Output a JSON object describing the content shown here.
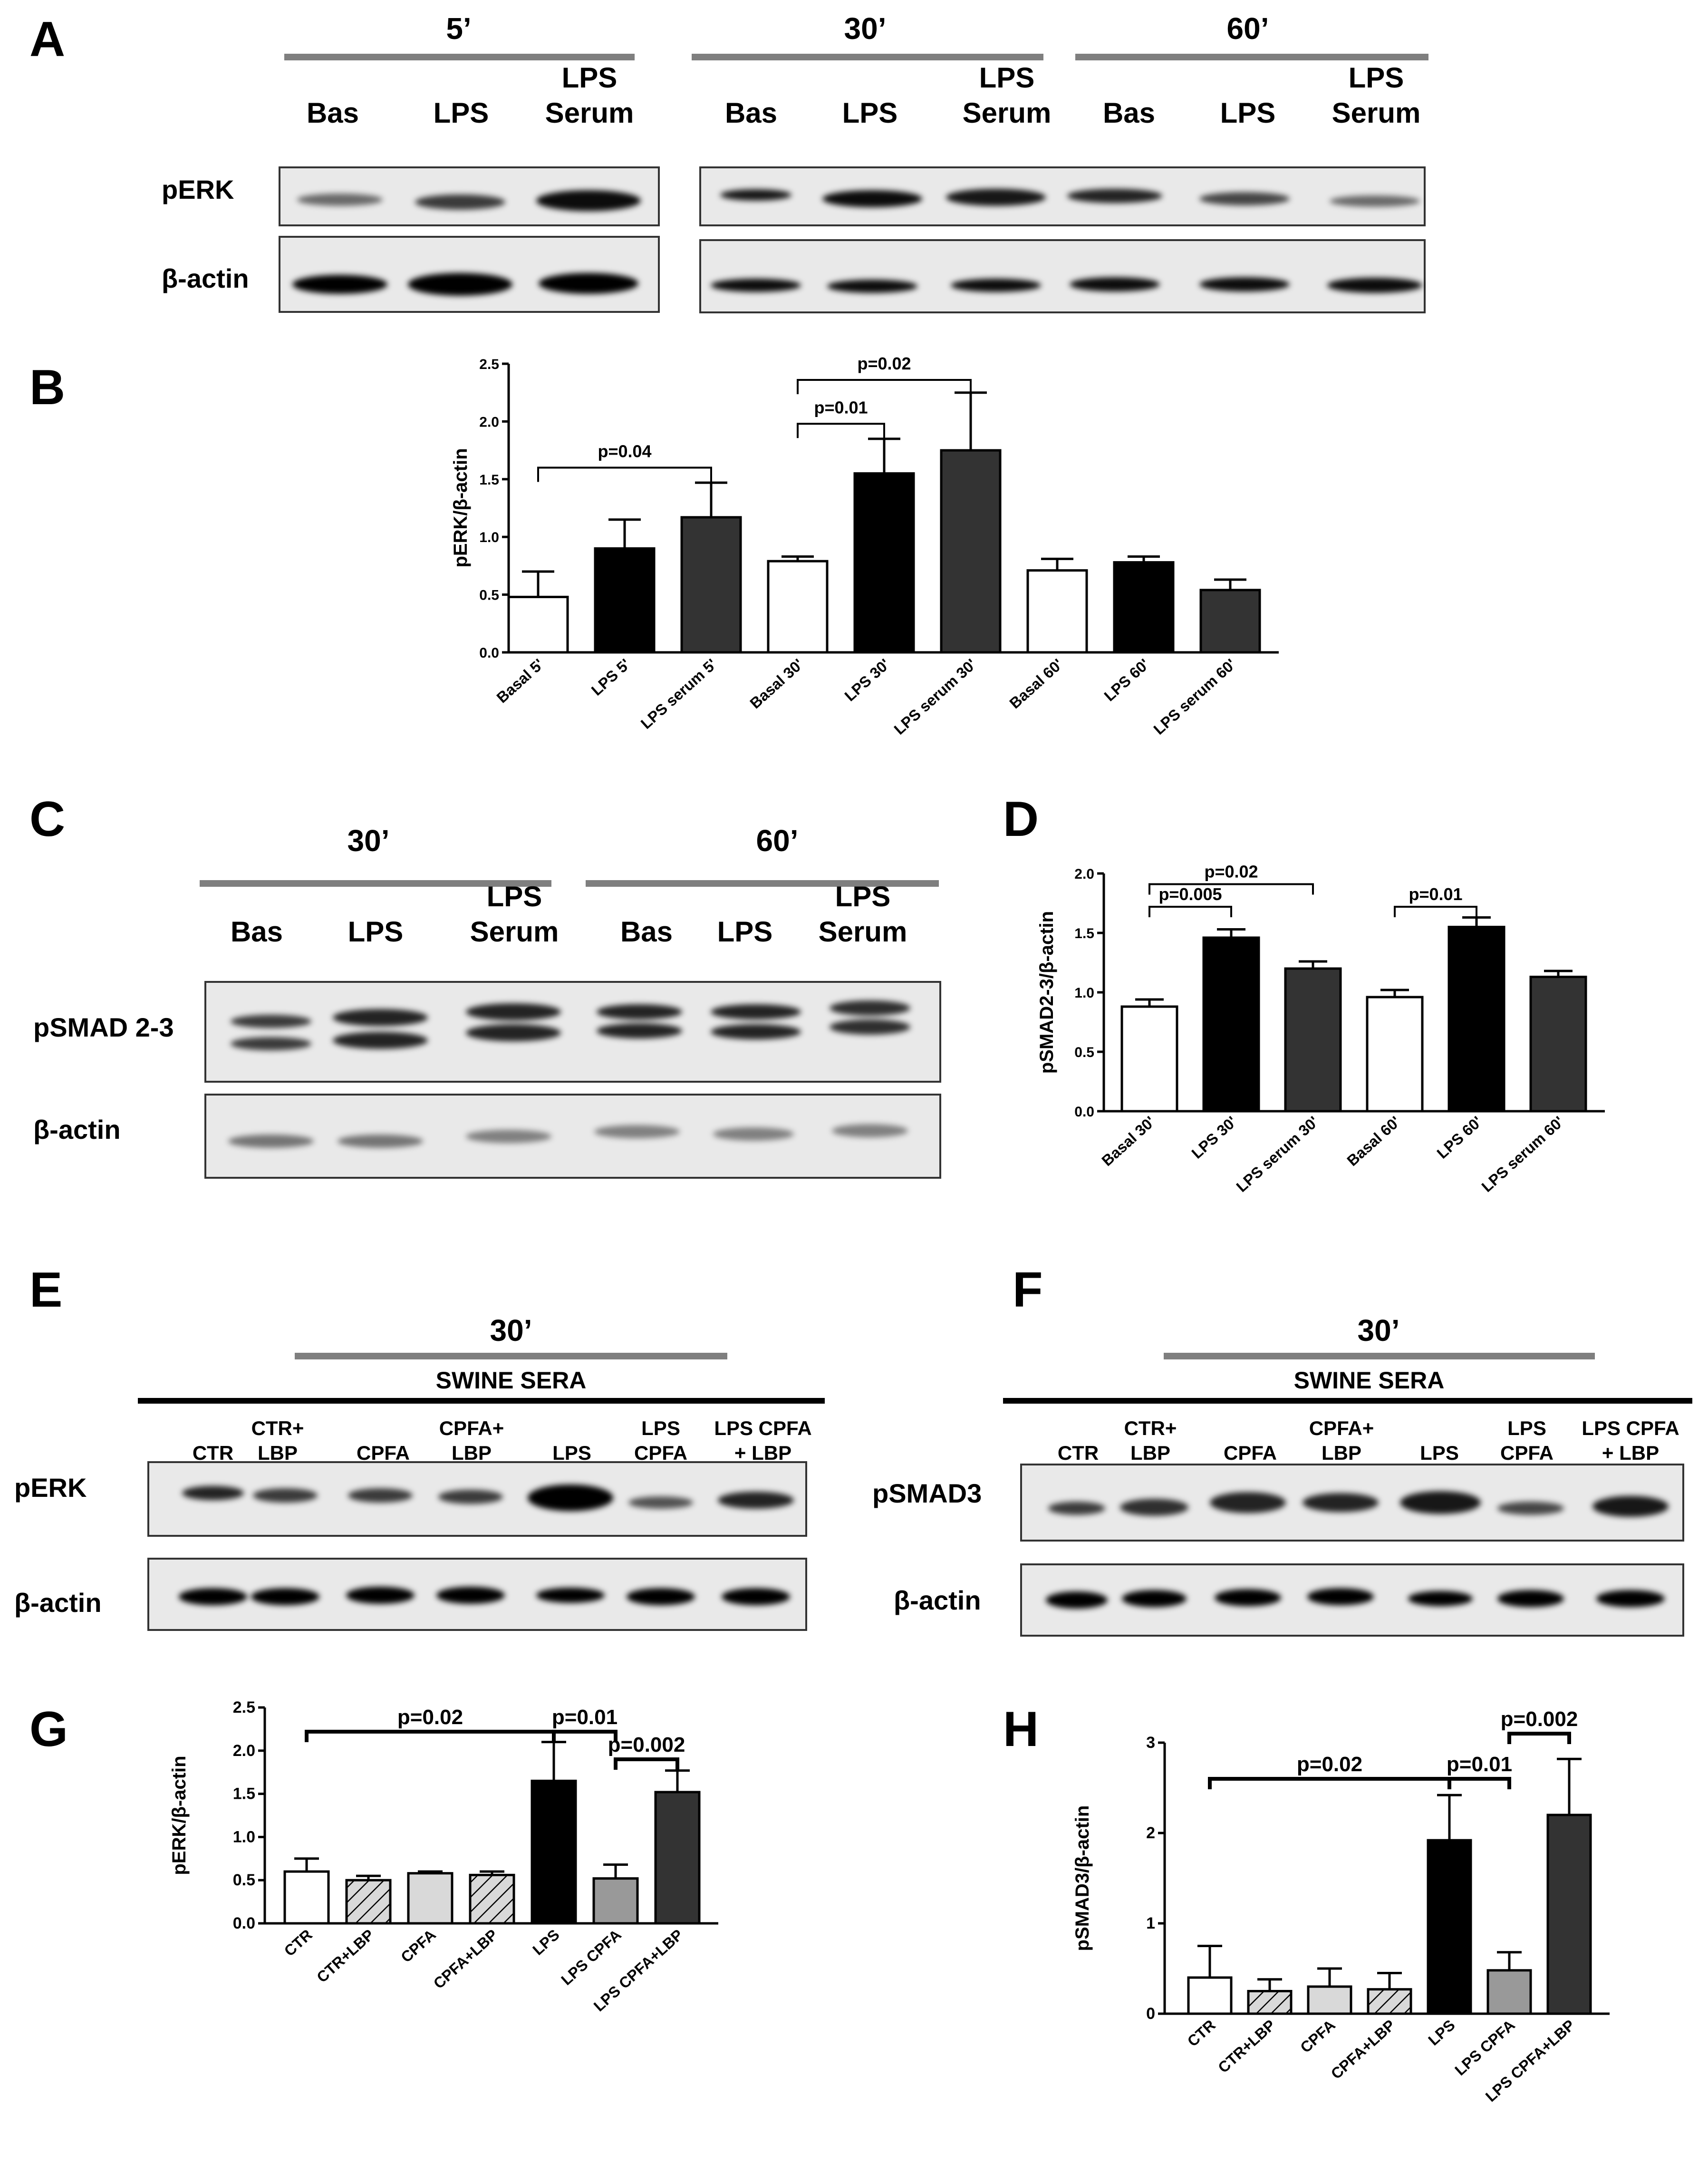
{
  "panels": {
    "A": "A",
    "B": "B",
    "C": "C",
    "D": "D",
    "E": "E",
    "F": "F",
    "G": "G",
    "H": "H"
  },
  "blot_A": {
    "times": [
      "5’",
      "30’",
      "60’"
    ],
    "lanes": [
      "Bas",
      "LPS",
      "LPS\nSerum",
      "Bas",
      "LPS",
      "LPS\nSerum",
      "Bas",
      "LPS",
      "LPS\nSerum"
    ],
    "rows": [
      "pERK",
      "β-actin"
    ]
  },
  "blot_C": {
    "times": [
      "30’",
      "60’"
    ],
    "lanes": [
      "Bas",
      "LPS",
      "LPS\nSerum",
      "Bas",
      "LPS",
      "LPS\nSerum"
    ],
    "rows": [
      "pSMAD 2-3",
      "β-actin"
    ]
  },
  "blot_E": {
    "time": "30’",
    "sera": "SWINE SERA",
    "lanes": [
      "CTR",
      "CTR+\nLBP",
      "CPFA",
      "CPFA+\nLBP",
      "LPS",
      "LPS\nCPFA",
      "LPS CPFA\n+ LBP"
    ],
    "rows": [
      "pERK",
      "β-actin"
    ]
  },
  "blot_F": {
    "time": "30’",
    "sera": "SWINE SERA",
    "lanes": [
      "CTR",
      "CTR+\nLBP",
      "CPFA",
      "CPFA+\nLBP",
      "LPS",
      "LPS\nCPFA",
      "LPS CPFA\n+ LBP"
    ],
    "rows": [
      "pSMAD3",
      "β-actin"
    ]
  },
  "colors": {
    "white": "#ffffff",
    "black": "#000000",
    "dark": "#333333",
    "light": "#d9d9d9",
    "midgray": "#999999",
    "hatch": "#d9d9d9"
  },
  "chart_data": [
    {
      "id": "B",
      "type": "bar",
      "ylabel": "pERK/β-actin",
      "ylim": [
        0,
        2.5
      ],
      "yticks": [
        "0.0",
        "0.5",
        "1.0",
        "1.5",
        "2.0",
        "2.5"
      ],
      "categories": [
        "Basal 5'",
        "LPS 5'",
        "LPS serum 5'",
        "Basal 30'",
        "LPS 30'",
        "LPS serum 30'",
        "Basal 60'",
        "LPS 60'",
        "LPS serum 60'"
      ],
      "values": [
        0.48,
        0.9,
        1.17,
        0.79,
        1.55,
        1.75,
        0.71,
        0.78,
        0.54
      ],
      "errors": [
        0.22,
        0.25,
        0.3,
        0.04,
        0.3,
        0.5,
        0.1,
        0.05,
        0.09
      ],
      "fills": [
        "white",
        "black",
        "dark",
        "white",
        "black",
        "dark",
        "white",
        "black",
        "dark"
      ],
      "annotations": [
        {
          "from": 0,
          "to": 2,
          "y": 1.6,
          "text": "p=0.04"
        },
        {
          "from": 3,
          "to": 4,
          "y": 1.98,
          "text": "p=0.01"
        },
        {
          "from": 3,
          "to": 5,
          "y": 2.36,
          "text": "p=0.02"
        }
      ]
    },
    {
      "id": "D",
      "type": "bar",
      "ylabel": "pSMAD2-3/β-actin",
      "ylim": [
        0,
        2.0
      ],
      "yticks": [
        "0.0",
        "0.5",
        "1.0",
        "1.5",
        "2.0"
      ],
      "categories": [
        "Basal 30'",
        "LPS 30'",
        "LPS serum 30'",
        "Basal 60'",
        "LPS 60'",
        "LPS serum 60'"
      ],
      "values": [
        0.88,
        1.46,
        1.2,
        0.96,
        1.55,
        1.13
      ],
      "errors": [
        0.06,
        0.07,
        0.06,
        0.06,
        0.08,
        0.05
      ],
      "fills": [
        "white",
        "black",
        "dark",
        "white",
        "black",
        "dark"
      ],
      "annotations": [
        {
          "from": 0,
          "to": 1,
          "y": 1.72,
          "text": "p=0.005"
        },
        {
          "from": 0,
          "to": 2,
          "y": 1.91,
          "text": "p=0.02"
        },
        {
          "from": 3,
          "to": 4,
          "y": 1.72,
          "text": "p=0.01"
        }
      ]
    },
    {
      "id": "G",
      "type": "bar",
      "ylabel": "pERK/β-actin",
      "ylim": [
        0,
        2.5
      ],
      "yticks": [
        "0.0",
        "0.5",
        "1.0",
        "1.5",
        "2.0",
        "2.5"
      ],
      "categories": [
        "CTR",
        "CTR+LBP",
        "CPFA",
        "CPFA+LBP",
        "LPS",
        "LPS CPFA",
        "LPS CPFA+LBP"
      ],
      "values": [
        0.6,
        0.5,
        0.58,
        0.56,
        1.65,
        0.52,
        1.52
      ],
      "errors": [
        0.15,
        0.05,
        0.02,
        0.04,
        0.45,
        0.16,
        0.25
      ],
      "fills": [
        "white",
        "hatch",
        "light",
        "hatch",
        "black",
        "midgray",
        "dark"
      ],
      "annotations": [
        {
          "from": 0,
          "to": 4,
          "y": 2.22,
          "text": "p=0.02"
        },
        {
          "from": 4,
          "to": 5,
          "y": 2.22,
          "text": "p=0.01"
        },
        {
          "from": 5,
          "to": 6,
          "y": 1.9,
          "text": "p=0.002"
        }
      ]
    },
    {
      "id": "H",
      "type": "bar",
      "ylabel": "pSMAD3/β-actin",
      "ylim": [
        0,
        3
      ],
      "yticks": [
        "0",
        "1",
        "2",
        "3"
      ],
      "categories": [
        "CTR",
        "CTR+LBP",
        "CPFA",
        "CPFA+LBP",
        "LPS",
        "LPS CPFA",
        "LPS CPFA+LBP"
      ],
      "values": [
        0.4,
        0.25,
        0.3,
        0.27,
        1.92,
        0.48,
        2.2
      ],
      "errors": [
        0.35,
        0.13,
        0.2,
        0.18,
        0.5,
        0.2,
        0.62
      ],
      "fills": [
        "white",
        "hatch",
        "light",
        "hatch",
        "black",
        "midgray",
        "dark"
      ],
      "annotations": [
        {
          "from": 0,
          "to": 4,
          "y": 2.6,
          "text": "p=0.02"
        },
        {
          "from": 4,
          "to": 5,
          "y": 2.6,
          "text": "p=0.01"
        },
        {
          "from": 5,
          "to": 6,
          "y": 3.1,
          "text": "p=0.002"
        }
      ]
    }
  ]
}
